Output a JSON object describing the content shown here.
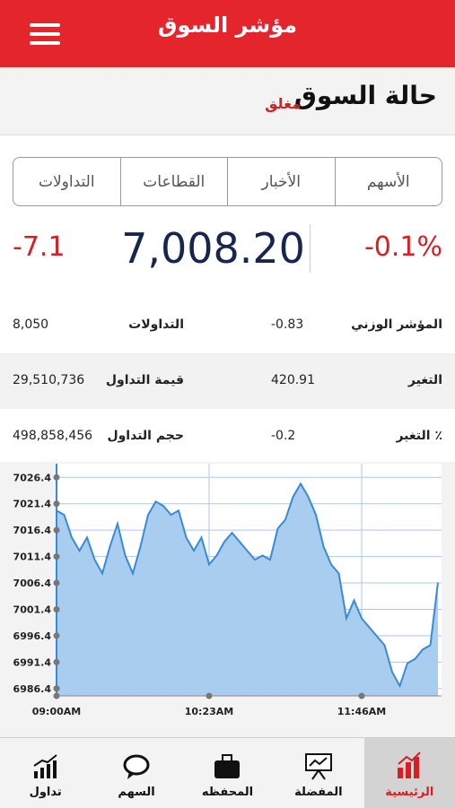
{
  "header": {
    "title": "مؤشر السوق"
  },
  "market_status": {
    "label": "حالة السوق",
    "value": "مغلق"
  },
  "tabs": [
    "الأسهم",
    "الأخبار",
    "القطاعات",
    "التداولات"
  ],
  "index": {
    "change_percent": "-0.1%",
    "value": "7,008.20",
    "change": "-7.1"
  },
  "stats": [
    {
      "label": "المؤشر الوزني",
      "value": "-0.83",
      "label2": "التداولات",
      "value2": "8,050"
    },
    {
      "label": "التغير",
      "value": "420.91",
      "label2": "قيمة التداول",
      "value2": "29,510,736"
    },
    {
      "label": "التغير ٪",
      "value": "-0.2",
      "label2": "حجم التداول",
      "value2": "498,858,456"
    }
  ],
  "nav": [
    "الرئيسية",
    "المفضلة",
    "المحفظه",
    "السهم",
    "تداول"
  ],
  "chart_data": {
    "type": "area",
    "color": "#3a8ad4",
    "fill": "#a9cdee",
    "grid": true,
    "categories": [
      "09:00AM",
      null,
      null,
      null,
      null,
      null,
      null,
      null,
      null,
      null,
      null,
      null,
      null,
      null,
      null,
      null,
      null,
      null,
      null,
      null,
      "10:23AM",
      null,
      null,
      null,
      null,
      null,
      null,
      null,
      null,
      null,
      null,
      null,
      null,
      null,
      null,
      null,
      null,
      null,
      null,
      null,
      "11:46AM",
      null,
      null,
      null,
      null,
      null,
      null,
      null,
      null,
      null,
      null
    ],
    "values": [
      7020.1,
      7019.3,
      7015.0,
      7012.5,
      7015.0,
      7010.8,
      7008.2,
      7013.3,
      7017.6,
      7011.6,
      7008.2,
      7013.3,
      7019.3,
      7021.8,
      7021.0,
      7019.3,
      7020.1,
      7015.0,
      7012.5,
      7015.0,
      7009.9,
      7011.6,
      7014.2,
      7015.9,
      7014.2,
      7012.5,
      7010.8,
      7011.6,
      7010.8,
      7016.7,
      7018.4,
      7022.7,
      7025.2,
      7022.7,
      7019.3,
      7013.3,
      7009.9,
      7008.2,
      6999.7,
      7003.1,
      6999.7,
      6998.0,
      6996.3,
      6994.6,
      6989.5,
      6986.9,
      6991.2,
      6992.0,
      6993.8,
      6994.6,
      7006.5
    ],
    "ylim": [
      6985,
      7029
    ],
    "yticks": [
      6986.4,
      6991.4,
      6996.4,
      7001.4,
      7006.4,
      7011.4,
      7016.4,
      7021.4,
      7026.4
    ]
  }
}
